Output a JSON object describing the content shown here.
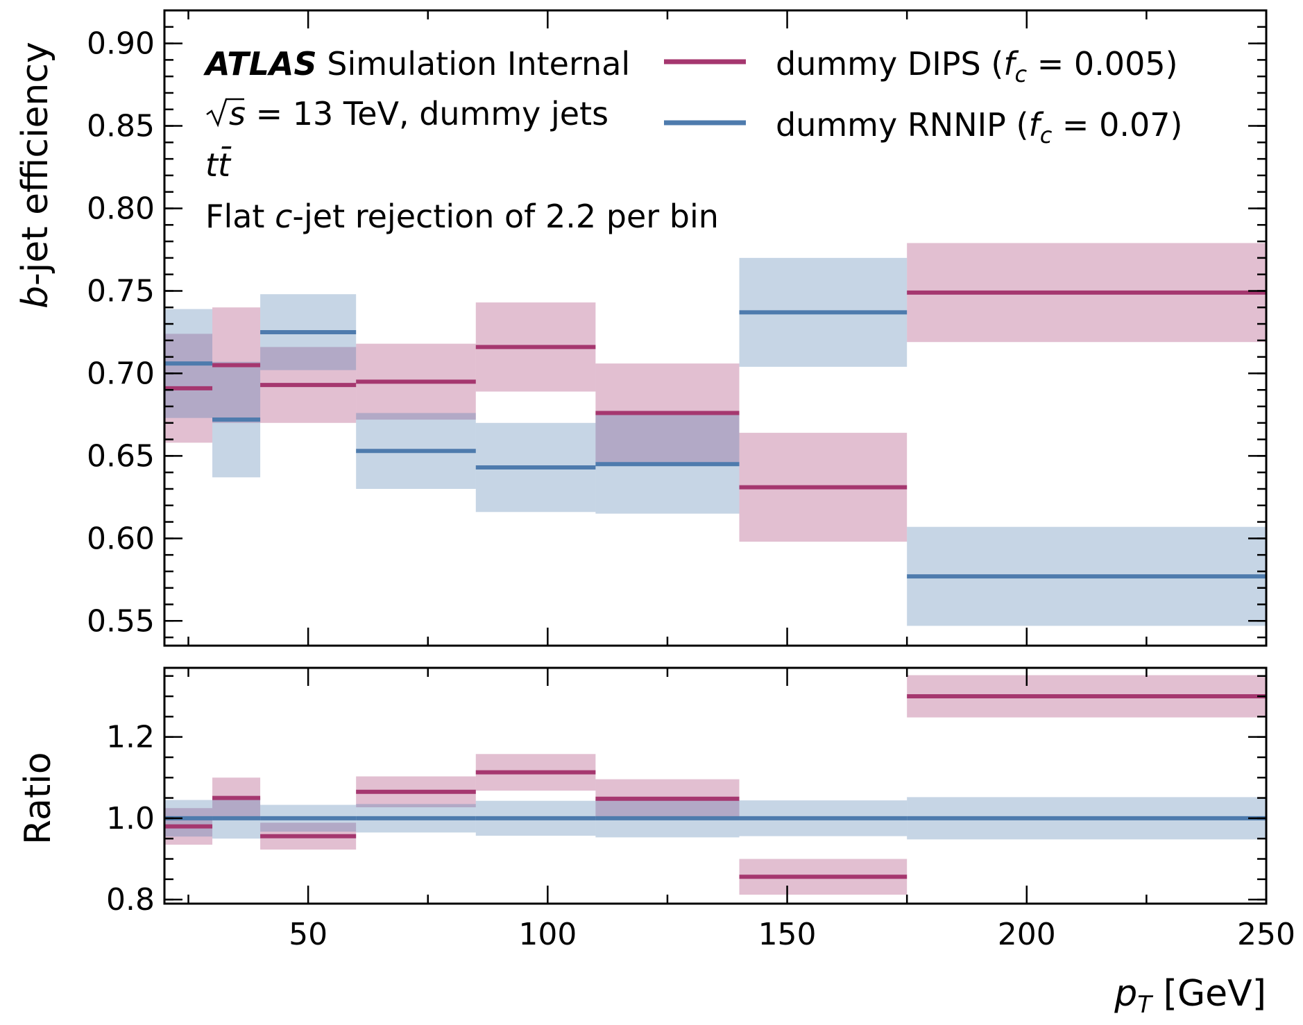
{
  "chart_data": {
    "type": "step-band",
    "x_edges": [
      20,
      30,
      40,
      60,
      85,
      110,
      140,
      175,
      250
    ],
    "xlim": [
      20,
      250
    ],
    "x_ticks": [
      "50",
      "100",
      "150",
      "200",
      "250"
    ],
    "xlabel_var": "p",
    "xlabel_sub": "T",
    "xlabel_unit": "[GeV]",
    "top": {
      "ylabel_var": "b",
      "ylabel_rest": "-jet efficiency",
      "ylim": [
        0.535,
        0.92
      ],
      "y_ticks": [
        "0.55",
        "0.60",
        "0.65",
        "0.70",
        "0.75",
        "0.80",
        "0.85",
        "0.90"
      ],
      "series": [
        {
          "name": "dummy DIPS",
          "fc_label": "0.005",
          "color": "#a5376f",
          "values": [
            0.691,
            0.705,
            0.693,
            0.695,
            0.716,
            0.676,
            0.631,
            0.749
          ],
          "unc": [
            0.033,
            0.035,
            0.023,
            0.023,
            0.027,
            0.03,
            0.033,
            0.03
          ]
        },
        {
          "name": "dummy RNNIP",
          "fc_label": "0.07",
          "color": "#4e7bad",
          "values": [
            0.706,
            0.672,
            0.725,
            0.653,
            0.643,
            0.645,
            0.737,
            0.577
          ],
          "unc": [
            0.033,
            0.035,
            0.023,
            0.023,
            0.027,
            0.03,
            0.033,
            0.03
          ]
        }
      ]
    },
    "bottom": {
      "ylabel": "Ratio",
      "ylim": [
        0.79,
        1.37
      ],
      "y_ticks": [
        "0.8",
        "1.0",
        "1.2"
      ],
      "series": [
        {
          "name": "dummy DIPS",
          "color": "#a5376f",
          "values": [
            0.98,
            1.05,
            0.956,
            1.065,
            1.113,
            1.048,
            0.856,
            1.3
          ],
          "unc": [
            0.045,
            0.05,
            0.033,
            0.038,
            0.045,
            0.048,
            0.044,
            0.052
          ]
        },
        {
          "name": "dummy RNNIP",
          "color": "#4e7bad",
          "values": [
            1.0,
            1.0,
            1.0,
            1.0,
            1.0,
            1.0,
            1.0,
            1.0
          ],
          "unc": [
            0.045,
            0.05,
            0.033,
            0.035,
            0.043,
            0.047,
            0.044,
            0.052
          ]
        }
      ]
    }
  },
  "annotations": {
    "atlas": "ATLAS",
    "atlas_rest": " Simulation Internal",
    "sqrt_s": "s",
    "energy_rest": " = 13 TeV, dummy jets",
    "sample": "tt̄",
    "rejection_pre": "Flat ",
    "rejection_var": "c",
    "rejection_post": "-jet rejection of 2.2 per bin"
  }
}
